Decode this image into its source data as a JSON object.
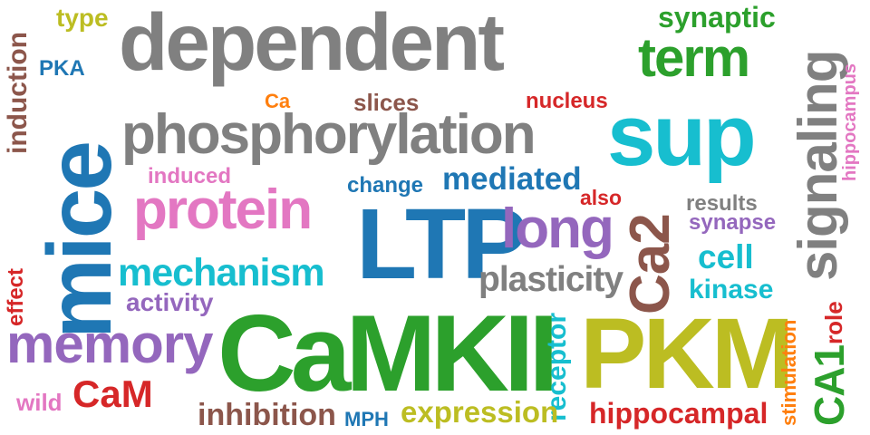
{
  "colors": {
    "gray": "#808080",
    "blue": "#1f77b4",
    "orange": "#ff7f0e",
    "green": "#2ca02c",
    "red": "#d62728",
    "purple": "#9467bd",
    "brown": "#8c564b",
    "pink": "#e377c2",
    "olive": "#bcbd22",
    "cyan": "#17becf"
  },
  "words": [
    {
      "id": "dependent",
      "text": "dependent",
      "color": "gray"
    },
    {
      "id": "phosphorylation",
      "text": "phosphorylation",
      "color": "gray"
    },
    {
      "id": "sup",
      "text": "sup",
      "color": "cyan"
    },
    {
      "id": "signaling",
      "text": "signaling",
      "color": "gray"
    },
    {
      "id": "mice",
      "text": "mice",
      "color": "blue"
    },
    {
      "id": "LTP",
      "text": "LTP",
      "color": "blue"
    },
    {
      "id": "CaMKII",
      "text": "CaMKII",
      "color": "green"
    },
    {
      "id": "PKM",
      "text": "PKM",
      "color": "olive"
    },
    {
      "id": "term",
      "text": "term",
      "color": "green"
    },
    {
      "id": "synaptic",
      "text": "synaptic",
      "color": "green"
    },
    {
      "id": "protein",
      "text": "protein",
      "color": "pink"
    },
    {
      "id": "memory",
      "text": "memory",
      "color": "purple"
    },
    {
      "id": "long",
      "text": "long",
      "color": "purple"
    },
    {
      "id": "Ca2",
      "text": "Ca2",
      "color": "brown"
    },
    {
      "id": "mechanism",
      "text": "mechanism",
      "color": "cyan"
    },
    {
      "id": "plasticity",
      "text": "plasticity",
      "color": "gray"
    },
    {
      "id": "mediated",
      "text": "mediated",
      "color": "blue"
    },
    {
      "id": "CA1",
      "text": "CA1",
      "color": "green"
    },
    {
      "id": "CaM",
      "text": "CaM",
      "color": "red"
    },
    {
      "id": "cell",
      "text": "cell",
      "color": "cyan"
    },
    {
      "id": "kinase",
      "text": "kinase",
      "color": "cyan"
    },
    {
      "id": "receptor",
      "text": "receptor",
      "color": "cyan"
    },
    {
      "id": "expression",
      "text": "expression",
      "color": "olive"
    },
    {
      "id": "hippocampal",
      "text": "hippocampal",
      "color": "red"
    },
    {
      "id": "inhibition",
      "text": "inhibition",
      "color": "brown"
    },
    {
      "id": "induction",
      "text": "induction",
      "color": "brown"
    },
    {
      "id": "activity",
      "text": "activity",
      "color": "purple"
    },
    {
      "id": "type",
      "text": "type",
      "color": "olive"
    },
    {
      "id": "nucleus",
      "text": "nucleus",
      "color": "red"
    },
    {
      "id": "slices",
      "text": "slices",
      "color": "brown"
    },
    {
      "id": "change",
      "text": "change",
      "color": "blue"
    },
    {
      "id": "induced",
      "text": "induced",
      "color": "pink"
    },
    {
      "id": "results",
      "text": "results",
      "color": "gray"
    },
    {
      "id": "synapse",
      "text": "synapse",
      "color": "purple"
    },
    {
      "id": "also",
      "text": "also",
      "color": "red"
    },
    {
      "id": "role",
      "text": "role",
      "color": "red"
    },
    {
      "id": "stimulation",
      "text": "stimulation",
      "color": "orange"
    },
    {
      "id": "hippocampus",
      "text": "hippocampus",
      "color": "pink"
    },
    {
      "id": "effect",
      "text": "effect",
      "color": "red"
    },
    {
      "id": "wild",
      "text": "wild",
      "color": "pink"
    },
    {
      "id": "MPH",
      "text": "MPH",
      "color": "blue"
    },
    {
      "id": "PKA",
      "text": "PKA",
      "color": "blue"
    },
    {
      "id": "Ca",
      "text": "Ca",
      "color": "orange"
    }
  ]
}
